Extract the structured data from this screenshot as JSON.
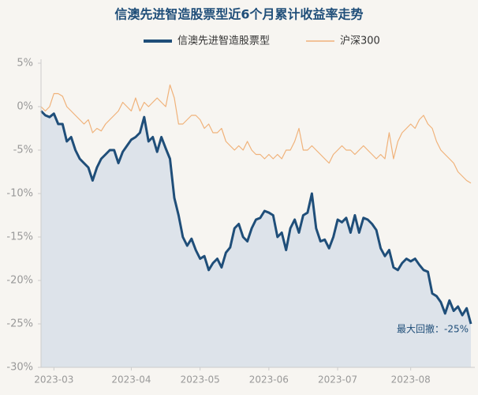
{
  "chart_data": {
    "type": "line",
    "title": "信澳先进智造股票型近6个月累计收益率走势",
    "categories": [
      null,
      null,
      null,
      "2023-03",
      null,
      null,
      null,
      null,
      null,
      null,
      null,
      null,
      null,
      null,
      null,
      null,
      null,
      null,
      null,
      null,
      null,
      "2023-04",
      null,
      null,
      null,
      null,
      null,
      null,
      null,
      null,
      null,
      null,
      null,
      null,
      null,
      null,
      null,
      "2023-05",
      null,
      null,
      null,
      null,
      null,
      null,
      null,
      null,
      null,
      null,
      null,
      null,
      null,
      null,
      null,
      "2023-06",
      null,
      null,
      null,
      null,
      null,
      null,
      null,
      null,
      null,
      null,
      null,
      null,
      null,
      null,
      null,
      "2023-07",
      null,
      null,
      null,
      null,
      null,
      null,
      null,
      null,
      null,
      null,
      null,
      null,
      null,
      null,
      null,
      null,
      "2023-08",
      null,
      null,
      null,
      null,
      null,
      null,
      null,
      null,
      null,
      null,
      null,
      null,
      null,
      null
    ],
    "series": [
      {
        "name": "信澳先进智造股票型",
        "color": "#1f4e79",
        "area": true,
        "values": [
          -0.5,
          -1,
          -1.2,
          -0.8,
          -2,
          -2,
          -4,
          -3.5,
          -5,
          -6,
          -6.5,
          -7,
          -8.5,
          -7,
          -6,
          -5.5,
          -5,
          -5,
          -6.5,
          -5.2,
          -4.5,
          -3.8,
          -3.5,
          -3,
          -1.2,
          -4,
          -3.5,
          -5.2,
          -3.5,
          -4.8,
          -6,
          -10.5,
          -12.5,
          -15,
          -16,
          -15.2,
          -16.5,
          -17.5,
          -17.2,
          -18.8,
          -18,
          -17.5,
          -18.5,
          -16.8,
          -16.2,
          -14,
          -13.5,
          -15,
          -15.5,
          -14,
          -13,
          -12.8,
          -12,
          -12.2,
          -12.5,
          -15,
          -14.5,
          -16.5,
          -14,
          -13,
          -14.5,
          -12.5,
          -12.2,
          -10,
          -14,
          -15.5,
          -15.3,
          -16.3,
          -15,
          -13,
          -13.3,
          -12.8,
          -14.5,
          -12.5,
          -14.5,
          -12.8,
          -13,
          -13.5,
          -14.2,
          -16.3,
          -17.2,
          -16.5,
          -18.5,
          -18.8,
          -18,
          -17.5,
          -17.8,
          -17.5,
          -18.2,
          -18.8,
          -19,
          -21.5,
          -21.8,
          -22.5,
          -23.8,
          -22.3,
          -23.5,
          -23,
          -24,
          -23.2,
          -25
        ]
      },
      {
        "name": "沪深300",
        "color": "#f0b27a",
        "area": false,
        "values": [
          0,
          -0.5,
          0,
          1.5,
          1.5,
          1.2,
          0,
          -0.5,
          -1,
          -1.5,
          -2,
          -1.5,
          -3,
          -2.5,
          -2.8,
          -2,
          -1.5,
          -1,
          -0.5,
          0.5,
          0,
          -0.5,
          1,
          -0.5,
          0.5,
          0,
          0.5,
          1,
          0.5,
          0,
          2.5,
          1,
          -2,
          -2,
          -1.5,
          -1,
          -1,
          -1.5,
          -2.5,
          -2,
          -3,
          -3,
          -2.5,
          -4,
          -4.5,
          -5,
          -4.5,
          -5,
          -4,
          -5,
          -5.5,
          -5.5,
          -6,
          -5.5,
          -6,
          -5.5,
          -6,
          -5,
          -5,
          -4,
          -2.5,
          -5,
          -5,
          -4.5,
          -5,
          -5.5,
          -6,
          -6.5,
          -5.5,
          -5,
          -4.5,
          -5,
          -5,
          -5.5,
          -5,
          -4.5,
          -5,
          -5.5,
          -6,
          -5.5,
          -6,
          -3,
          -6,
          -4,
          -3,
          -2.5,
          -2,
          -2.5,
          -1.5,
          -1,
          -2,
          -2.5,
          -4,
          -5,
          -5.5,
          -6,
          -6.5,
          -7.5,
          -8,
          -8.5,
          -8.8
        ]
      }
    ],
    "ylim": [
      -30,
      5
    ],
    "yticks": [
      {
        "value": 5,
        "label": "5%"
      },
      {
        "value": 0,
        "label": "0%"
      },
      {
        "value": -5,
        "label": "-5%"
      },
      {
        "value": -10,
        "label": "-10%"
      },
      {
        "value": -15,
        "label": "-15%"
      },
      {
        "value": -20,
        "label": "-20%"
      },
      {
        "value": -25,
        "label": "-25%"
      },
      {
        "value": -30,
        "label": "-30%"
      }
    ],
    "grid": false,
    "annotation": "最大回撤：-25%"
  }
}
